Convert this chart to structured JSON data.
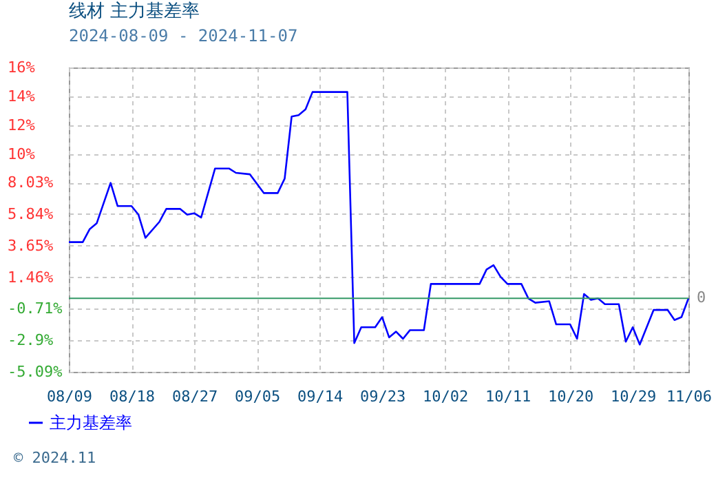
{
  "chart_data": {
    "type": "line",
    "title": "线材  主力基差率",
    "subtitle": "2024-08-09 - 2024-11-07",
    "x": [
      "2024-08-09",
      "2024-08-11",
      "2024-08-12",
      "2024-08-13",
      "2024-08-15",
      "2024-08-16",
      "2024-08-18",
      "2024-08-19",
      "2024-08-20",
      "2024-08-22",
      "2024-08-23",
      "2024-08-25",
      "2024-08-26",
      "2024-08-27",
      "2024-08-28",
      "2024-08-30",
      "2024-09-01",
      "2024-09-02",
      "2024-09-04",
      "2024-09-06",
      "2024-09-08",
      "2024-09-09",
      "2024-09-10",
      "2024-09-11",
      "2024-09-12",
      "2024-09-13",
      "2024-09-18",
      "2024-09-19",
      "2024-09-20",
      "2024-09-22",
      "2024-09-23",
      "2024-09-24",
      "2024-09-25",
      "2024-09-26",
      "2024-09-27",
      "2024-09-29",
      "2024-09-30",
      "2024-10-07",
      "2024-10-08",
      "2024-10-09",
      "2024-10-10",
      "2024-10-11",
      "2024-10-13",
      "2024-10-14",
      "2024-10-15",
      "2024-10-17",
      "2024-10-18",
      "2024-10-20",
      "2024-10-21",
      "2024-10-22",
      "2024-10-23",
      "2024-10-24",
      "2024-10-25",
      "2024-10-27",
      "2024-10-28",
      "2024-10-29",
      "2024-10-30",
      "2024-11-01",
      "2024-11-03",
      "2024-11-04",
      "2024-11-05",
      "2024-11-06"
    ],
    "series": [
      {
        "name": "主力基差率",
        "color": "#0000ff",
        "values": [
          3.9,
          3.9,
          4.8,
          5.2,
          8.0,
          6.4,
          6.4,
          5.8,
          4.2,
          5.3,
          6.2,
          6.2,
          5.8,
          5.9,
          5.6,
          9.0,
          9.0,
          8.7,
          8.6,
          7.3,
          7.3,
          8.3,
          12.6,
          12.7,
          13.1,
          14.3,
          14.3,
          -3.1,
          -2.0,
          -2.0,
          -1.3,
          -2.7,
          -2.3,
          -2.8,
          -2.2,
          -2.2,
          1.0,
          1.0,
          2.0,
          2.3,
          1.5,
          1.0,
          1.0,
          0.0,
          -0.3,
          -0.2,
          -1.8,
          -1.8,
          -2.8,
          0.3,
          -0.1,
          0.0,
          -0.4,
          -0.4,
          -3.0,
          -2.0,
          -3.2,
          -0.8,
          -0.8,
          -1.5,
          -1.3,
          0.0
        ]
      }
    ],
    "xlim": [
      "2024-08-09",
      "2024-11-06"
    ],
    "xticks": [
      {
        "value": "2024-08-09",
        "label": "08/09"
      },
      {
        "value": "2024-08-18",
        "label": "08/18"
      },
      {
        "value": "2024-08-27",
        "label": "08/27"
      },
      {
        "value": "2024-09-05",
        "label": "09/05"
      },
      {
        "value": "2024-09-14",
        "label": "09/14"
      },
      {
        "value": "2024-09-23",
        "label": "09/23"
      },
      {
        "value": "2024-10-02",
        "label": "10/02"
      },
      {
        "value": "2024-10-11",
        "label": "10/11"
      },
      {
        "value": "2024-10-20",
        "label": "10/20"
      },
      {
        "value": "2024-10-29",
        "label": "10/29"
      },
      {
        "value": "2024-11-06",
        "label": "11/06"
      }
    ],
    "ylim": [
      -5.09,
      16
    ],
    "yticks": [
      {
        "value": -5.09,
        "label": "-5.09%"
      },
      {
        "value": -2.9,
        "label": "-2.9%"
      },
      {
        "value": -0.71,
        "label": "-0.71%"
      },
      {
        "value": 1.46,
        "label": "1.46%"
      },
      {
        "value": 3.65,
        "label": "3.65%"
      },
      {
        "value": 5.84,
        "label": "5.84%"
      },
      {
        "value": 8.03,
        "label": "8.03%"
      },
      {
        "value": 10,
        "label": "10%"
      },
      {
        "value": 12,
        "label": "12%"
      },
      {
        "value": 14,
        "label": "14%"
      },
      {
        "value": 16,
        "label": "16%"
      }
    ],
    "ref_lines": [
      {
        "axis": "y",
        "value": 0,
        "label": "0",
        "color": "#339966"
      }
    ],
    "grid": true,
    "legend": "bottom",
    "marker": "none",
    "line_style": "solid",
    "annotations": [
      "© 2024.11"
    ]
  }
}
